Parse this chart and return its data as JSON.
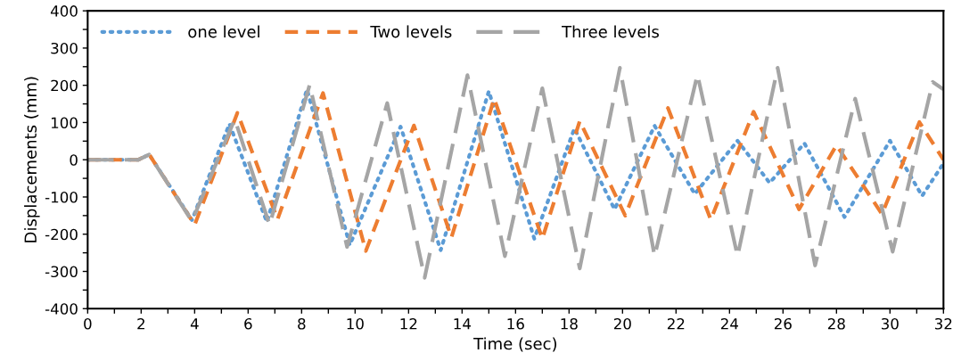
{
  "chart_data": {
    "type": "line",
    "xlabel": "Time (sec)",
    "ylabel": "Displacements (mm)",
    "xlim": [
      0,
      32
    ],
    "ylim": [
      -400,
      400
    ],
    "xticks": [
      0,
      {
        "value": 1,
        "label": null
      },
      2,
      {
        "value": 3,
        "label": null
      },
      4,
      {
        "value": 5,
        "label": null
      },
      6,
      {
        "value": 7,
        "label": null
      },
      8,
      {
        "value": 9,
        "label": null
      },
      10,
      {
        "value": 11,
        "label": null
      },
      12,
      {
        "value": 13,
        "label": null
      },
      14,
      {
        "value": 15,
        "label": null
      },
      16,
      {
        "value": 17,
        "label": null
      },
      18,
      {
        "value": 19,
        "label": null
      },
      20,
      {
        "value": 21,
        "label": null
      },
      22,
      {
        "value": 23,
        "label": null
      },
      24,
      {
        "value": 25,
        "label": null
      },
      26,
      {
        "value": 27,
        "label": null
      },
      28,
      {
        "value": 29,
        "label": null
      },
      30,
      {
        "value": 31,
        "label": null
      },
      32
    ],
    "yticks": [
      -400,
      {
        "value": -350,
        "label": null
      },
      -300,
      {
        "value": -250,
        "label": null
      },
      -200,
      {
        "value": -150,
        "label": null
      },
      -100,
      {
        "value": -50,
        "label": null
      },
      0,
      {
        "value": 50,
        "label": null
      },
      100,
      {
        "value": 150,
        "label": null
      },
      200,
      {
        "value": 250,
        "label": null
      },
      300,
      {
        "value": 350,
        "label": null
      },
      400
    ],
    "grid": false,
    "legend": "top left",
    "marker": "none",
    "series": [
      {
        "name": "one level",
        "color": "#5b9bd5",
        "line_style": "dotted",
        "x": [
          0,
          1.9,
          2.3,
          3.9,
          5.3,
          6.7,
          8.2,
          9.8,
          11.7,
          13.2,
          15.0,
          16.7,
          18.2,
          19.7,
          21.2,
          22.7,
          24.3,
          25.5,
          26.8,
          28.3,
          30.0,
          31.2,
          32
        ],
        "values": [
          0,
          0,
          14,
          -162,
          96,
          -167,
          189,
          -229,
          89,
          -243,
          184,
          -212,
          84,
          -133,
          91,
          -92,
          51,
          -62,
          44,
          -154,
          51,
          -97,
          -10
        ]
      },
      {
        "name": "Two levels",
        "color": "#ed7d31",
        "line_style": "dashed",
        "x": [
          0,
          1.9,
          2.3,
          4.0,
          5.6,
          7.1,
          8.8,
          10.4,
          12.2,
          13.6,
          15.2,
          17.0,
          18.4,
          20.1,
          21.7,
          23.3,
          24.9,
          26.6,
          28.0,
          29.7,
          31.1,
          32
        ],
        "values": [
          0,
          0,
          14,
          -175,
          126,
          -160,
          179,
          -245,
          92,
          -209,
          164,
          -212,
          104,
          -150,
          139,
          -161,
          129,
          -133,
          39,
          -146,
          101,
          0
        ]
      },
      {
        "name": "Three levels",
        "color": "#a5a5a5",
        "line_style": "long_dashed",
        "x": [
          0,
          1.9,
          2.3,
          3.9,
          5.5,
          6.8,
          8.3,
          9.7,
          11.2,
          12.6,
          14.2,
          15.6,
          17.0,
          18.4,
          19.9,
          21.2,
          22.8,
          24.3,
          25.8,
          27.2,
          28.7,
          30.1,
          31.6,
          32
        ],
        "values": [
          0,
          0,
          14,
          -165,
          109,
          -175,
          201,
          -234,
          152,
          -317,
          227,
          -259,
          192,
          -292,
          247,
          -259,
          229,
          -259,
          247,
          -284,
          164,
          -247,
          209,
          189
        ]
      }
    ]
  }
}
